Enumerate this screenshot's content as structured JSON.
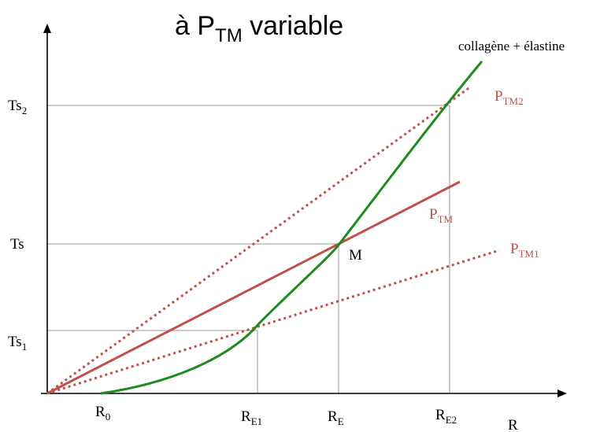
{
  "title": {
    "main": "à P",
    "sub": "TM",
    "rest": " variable"
  },
  "colors": {
    "curve": "#1f8a1f",
    "line": "#c0504d",
    "guide": "#9a9a9a",
    "axis": "#000000",
    "label": "#c0504d"
  },
  "curve_label": "collagène + élastine",
  "point_label": "M",
  "y_ticks": [
    {
      "id": "ts2",
      "main": "Ts",
      "sub": "2"
    },
    {
      "id": "ts",
      "main": "Ts",
      "sub": ""
    },
    {
      "id": "ts1",
      "main": "Ts",
      "sub": "1"
    }
  ],
  "x_ticks": [
    {
      "id": "r0",
      "main": "R",
      "sub": "0"
    },
    {
      "id": "re1",
      "main": "R",
      "sub": "E1"
    },
    {
      "id": "re",
      "main": "R",
      "sub": "E"
    },
    {
      "id": "re2",
      "main": "R",
      "sub": "E2"
    }
  ],
  "x_axis_label": "R",
  "lines": [
    {
      "id": "ptm2",
      "main": "P",
      "sub": "TM2",
      "style": "dotted"
    },
    {
      "id": "ptm",
      "main": "P",
      "sub": "TM",
      "style": "solid"
    },
    {
      "id": "ptm1",
      "main": "P",
      "sub": "TM1",
      "style": "dotted"
    }
  ]
}
